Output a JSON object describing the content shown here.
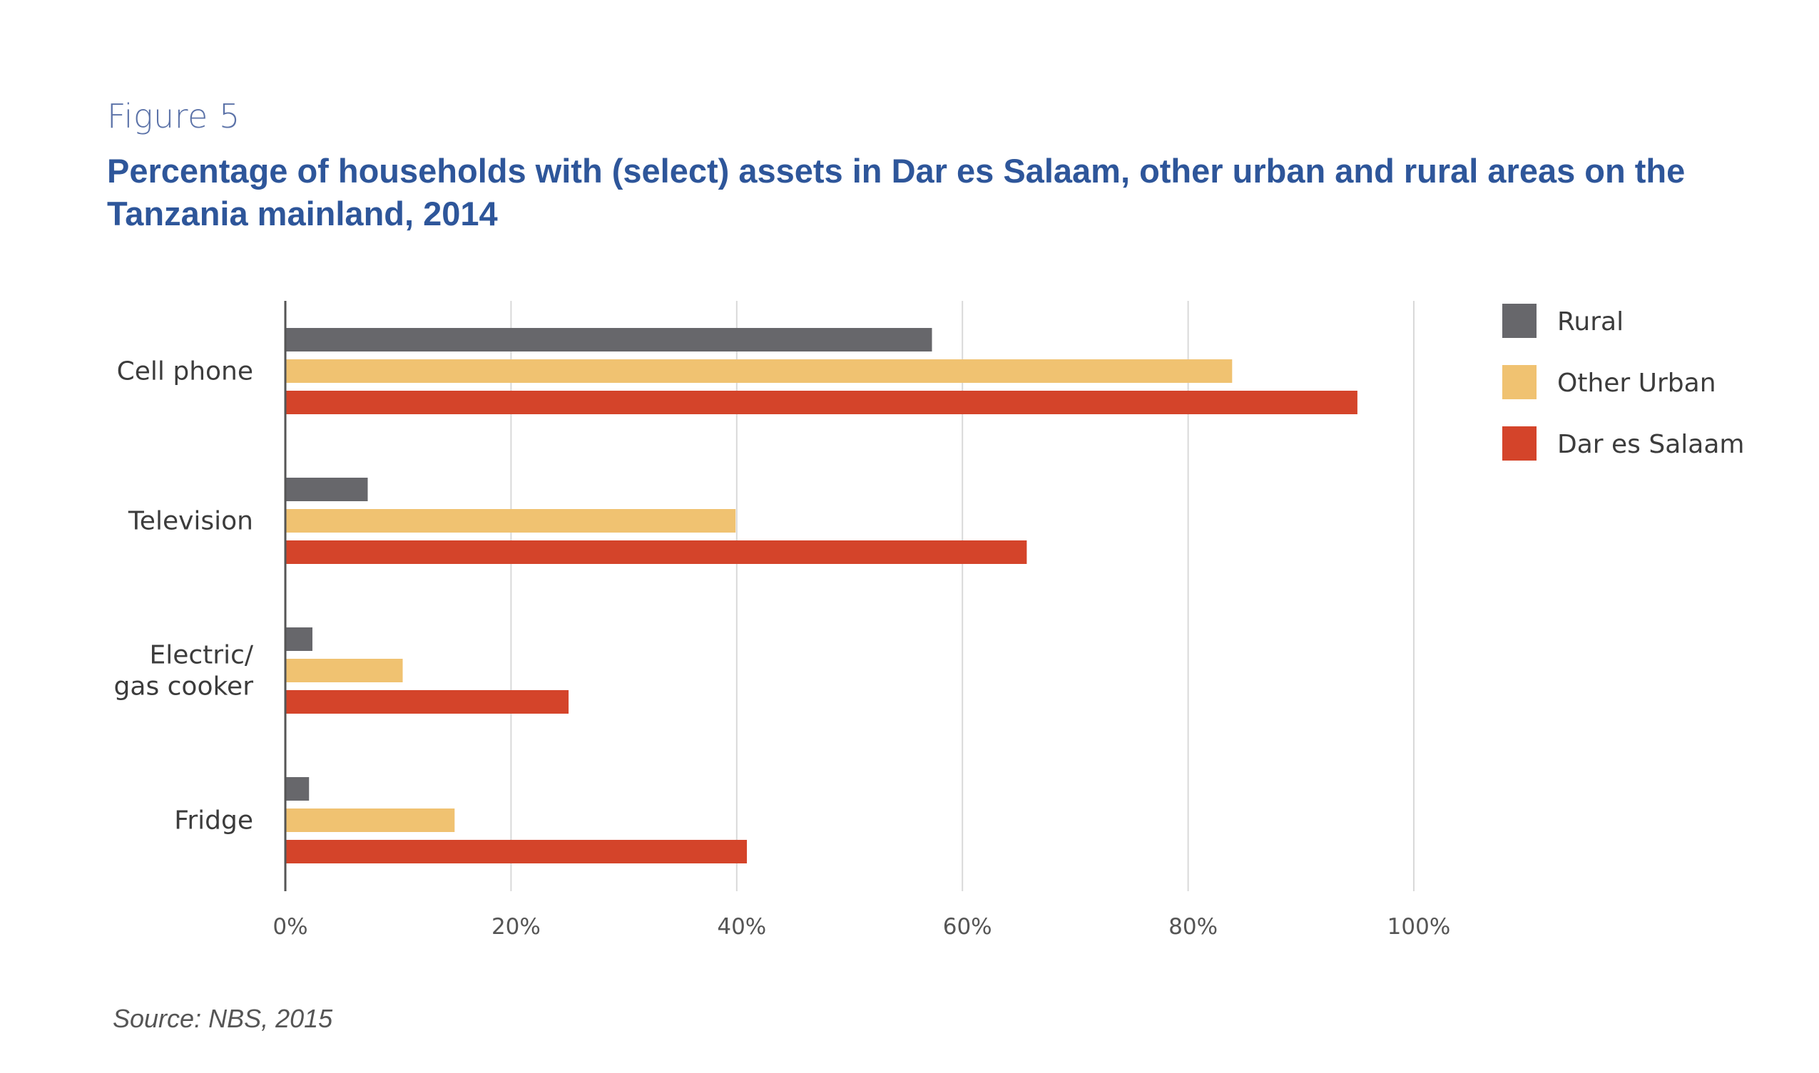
{
  "figure_label": "Figure 5",
  "title": "Percentage of households with (select) assets in Dar es Salaam, other urban and rural areas on the Tanzania mainland, 2014",
  "source": "Source: NBS, 2015",
  "chart_data": {
    "type": "bar",
    "orientation": "horizontal",
    "categories": [
      "Cell phone",
      "Television",
      "Electric/\ngas cooker",
      "Fridge"
    ],
    "series": [
      {
        "name": "Rural",
        "color": "#67676b",
        "values": [
          57.3,
          7.3,
          2.4,
          2.1
        ]
      },
      {
        "name": "Other Urban",
        "color": "#f0c271",
        "values": [
          83.9,
          39.9,
          10.4,
          15.0
        ]
      },
      {
        "name": "Dar es Salaam",
        "color": "#d4442a",
        "values": [
          95.0,
          65.7,
          25.1,
          40.9
        ]
      }
    ],
    "x_ticks": [
      "0%",
      "20%",
      "40%",
      "60%",
      "80%",
      "100%"
    ],
    "xlim": [
      0,
      100
    ],
    "xlabel": "",
    "ylabel": "",
    "grid": "vertical",
    "legend_position": "right"
  }
}
